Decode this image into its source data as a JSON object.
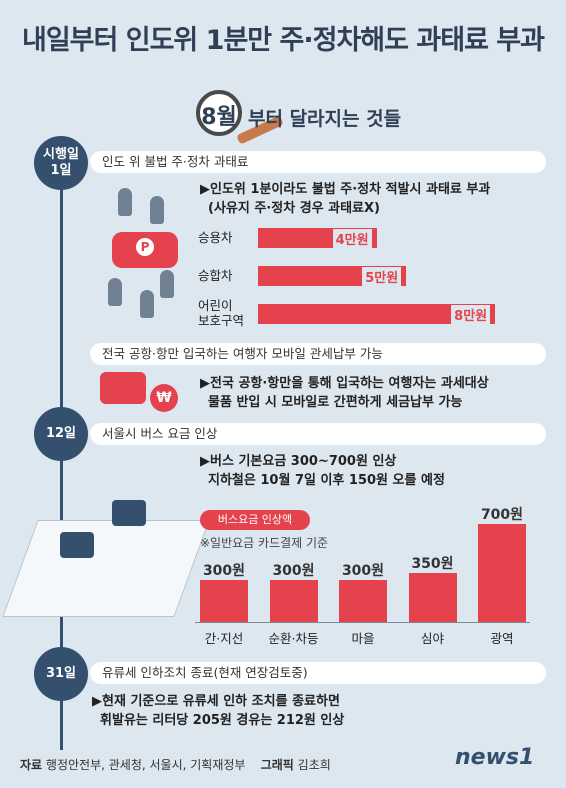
{
  "title": "내일부터 인도위 1분만 주·정차해도 과태료 부과",
  "subtitle": {
    "month": "8월",
    "text": "부터 달라지는 것들"
  },
  "sections": [
    {
      "date": "시행일\n1일",
      "items": [
        {
          "label": "인도 위 불법 주·정차 과태료",
          "desc": [
            "▶인도위 1분이라도 불법 주·정차 적발시 과태료 부과",
            "(사유지 주·정차 경우 과태료X)"
          ]
        },
        {
          "label": "전국 공항·항만 입국하는 여행자 모바일 관세납부 가능",
          "desc": [
            "▶전국 공항·항만을 통해 입국하는 여행자는 과세대상",
            "물품 반입 시 모바일로 간편하게 세금납부 가능"
          ]
        }
      ]
    },
    {
      "date": "12일",
      "items": [
        {
          "label": "서울시 버스 요금 인상",
          "desc": [
            "▶버스 기본요금 300~700원 인상",
            "지하철은 10월 7일 이후 150원 오를 예정"
          ]
        }
      ]
    },
    {
      "date": "31일",
      "items": [
        {
          "label": "유류세 인하조치 종료(현재 연장검토중)",
          "desc": [
            "▶현재 기준으로 유류세 인하 조치를 종료하면",
            "휘발유는 리터당 205원 경유는 212원 인상"
          ]
        }
      ]
    }
  ],
  "chart_data": [
    {
      "type": "bar",
      "orientation": "horizontal",
      "categories": [
        "승용차",
        "승합차",
        "어린이\n보호구역"
      ],
      "values": [
        4,
        5,
        8
      ],
      "value_labels": [
        "4만원",
        "5만원",
        "8만원"
      ],
      "xlim": [
        0,
        8.5
      ]
    },
    {
      "type": "bar",
      "orientation": "vertical",
      "legend": "버스요금 인상액",
      "note": "※일반요금 카드결제 기준",
      "categories": [
        "간·지선",
        "순환·차등",
        "마을",
        "심야",
        "광역"
      ],
      "values": [
        300,
        300,
        300,
        350,
        700
      ],
      "value_labels": [
        "300원",
        "300원",
        "300원",
        "350원",
        "700원"
      ],
      "ylim": [
        0,
        750
      ]
    }
  ],
  "footer": {
    "source_label": "자료",
    "source_text": "행정안전부, 관세청, 서울시, 기획재정부",
    "graphic_label": "그래픽",
    "graphic_text": "김초희"
  },
  "logo": "news1"
}
